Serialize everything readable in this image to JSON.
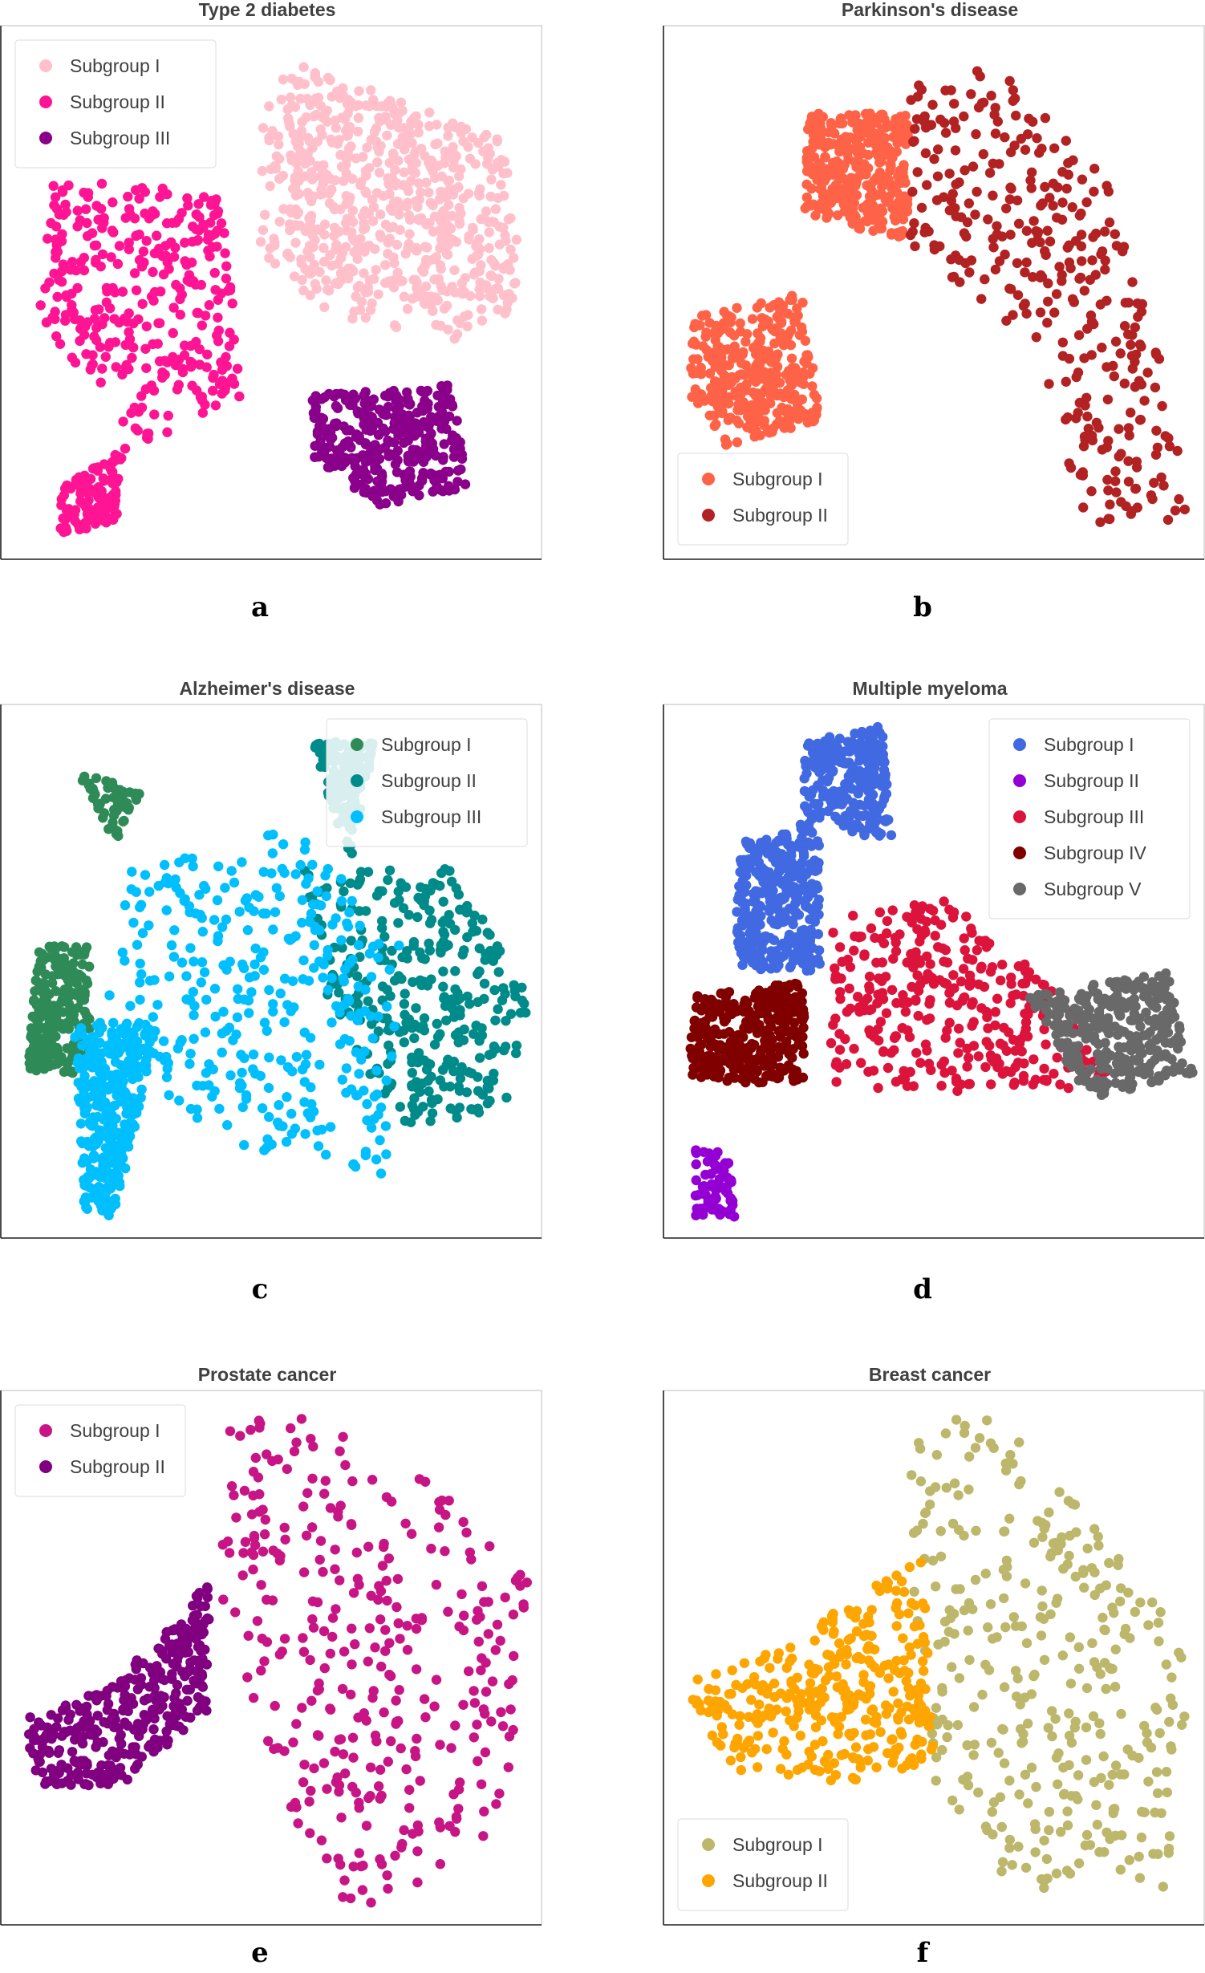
{
  "chart_data": [
    {
      "type": "scatter",
      "panel_label": "a",
      "title": "Type 2 diabetes",
      "legend_position": "top-left",
      "series": [
        {
          "name": "Subgroup I",
          "color": "#FFC0CB"
        },
        {
          "name": "Subgroup II",
          "color": "#FF1493"
        },
        {
          "name": "Subgroup III",
          "color": "#8B008B"
        }
      ]
    },
    {
      "type": "scatter",
      "panel_label": "b",
      "title": "Parkinson's disease",
      "legend_position": "bottom-left",
      "series": [
        {
          "name": "Subgroup I",
          "color": "#FF6347"
        },
        {
          "name": "Subgroup II",
          "color": "#B22222"
        }
      ]
    },
    {
      "type": "scatter",
      "panel_label": "c",
      "title": "Alzheimer's disease",
      "legend_position": "top-right",
      "series": [
        {
          "name": "Subgroup I",
          "color": "#2E8B57"
        },
        {
          "name": "Subgroup II",
          "color": "#008B8B"
        },
        {
          "name": "Subgroup III",
          "color": "#00BFFF"
        }
      ]
    },
    {
      "type": "scatter",
      "panel_label": "d",
      "title": "Multiple myeloma",
      "legend_position": "top-right",
      "series": [
        {
          "name": "Subgroup I",
          "color": "#4169E1"
        },
        {
          "name": "Subgroup II",
          "color": "#9400D3"
        },
        {
          "name": "Subgroup III",
          "color": "#DC143C"
        },
        {
          "name": "Subgroup IV",
          "color": "#800000"
        },
        {
          "name": "Subgroup V",
          "color": "#696969"
        }
      ]
    },
    {
      "type": "scatter",
      "panel_label": "e",
      "title": "Prostate cancer",
      "legend_position": "top-left",
      "series": [
        {
          "name": "Subgroup I",
          "color": "#C71585"
        },
        {
          "name": "Subgroup II",
          "color": "#800080"
        }
      ]
    },
    {
      "type": "scatter",
      "panel_label": "f",
      "title": "Breast cancer",
      "legend_position": "bottom-left",
      "series": [
        {
          "name": "Subgroup I",
          "color": "#BDB76B"
        },
        {
          "name": "Subgroup II",
          "color": "#FFA500"
        }
      ]
    }
  ]
}
